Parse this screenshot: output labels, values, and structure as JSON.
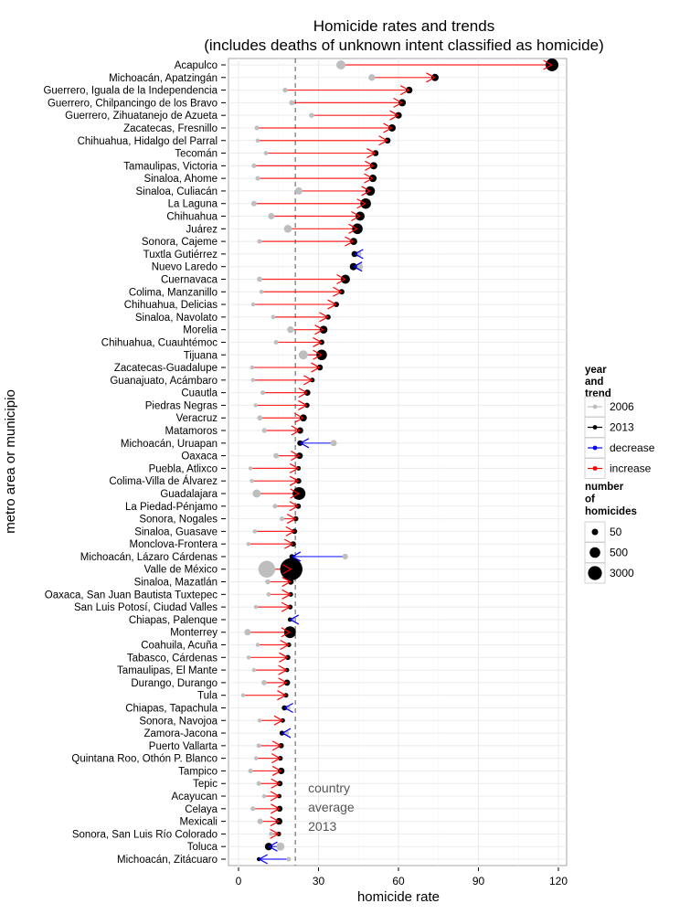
{
  "chart_data": {
    "type": "dot-arrow",
    "title": "Homicide rates and trends",
    "subtitle": "(includes deaths of unknown intent classified as homicide)",
    "xlabel": "homicide rate",
    "ylabel": "metro area or municipio",
    "xlim": [
      -4,
      124
    ],
    "xticks": [
      0,
      30,
      60,
      90,
      120
    ],
    "xtick_labels": [
      "0",
      "30",
      "60",
      "90",
      "120"
    ],
    "grid": true,
    "reference_line": {
      "value": 21.3,
      "style": "dashed",
      "label_lines": [
        "country",
        "average",
        "2013"
      ]
    },
    "colors": {
      "2006": "#bebebe",
      "2013": "#000000",
      "decrease": "#0000ff",
      "increase": "#ff0000"
    },
    "legend_trend": {
      "title_lines": [
        "year",
        "and",
        "trend"
      ],
      "position": "right",
      "items": [
        {
          "label": "2006",
          "color": "#bebebe"
        },
        {
          "label": "2013",
          "color": "#000000"
        },
        {
          "label": "decrease",
          "color": "#0000ff"
        },
        {
          "label": "increase",
          "color": "#ff0000"
        }
      ]
    },
    "legend_size": {
      "title_lines": [
        "number",
        "of",
        "homicides"
      ],
      "position": "right",
      "items": [
        {
          "label": "50",
          "value": 50
        },
        {
          "label": "500",
          "value": 500
        },
        {
          "label": "3000",
          "value": 3000
        }
      ]
    },
    "rows": [
      {
        "name": "Acapulco",
        "rate_2006": 38.4,
        "rate_2013": 117.6,
        "n_2006": 400,
        "n_2013": 1000
      },
      {
        "name": "Michoacán, Apatzingán",
        "rate_2006": 50.0,
        "rate_2013": 73.7,
        "n_2006": 150,
        "n_2013": 200
      },
      {
        "name": "Guerrero, Iguala de la Independencia",
        "rate_2006": 17.5,
        "rate_2013": 64.0,
        "n_2006": 40,
        "n_2013": 150
      },
      {
        "name": "Guerrero, Chilpancingo de los Bravo",
        "rate_2006": 20.0,
        "rate_2013": 61.4,
        "n_2006": 60,
        "n_2013": 200
      },
      {
        "name": "Guerrero, Zihuatanejo de Azueta",
        "rate_2006": 27.4,
        "rate_2013": 60.0,
        "n_2006": 40,
        "n_2013": 140
      },
      {
        "name": "Zacatecas, Fresnillo",
        "rate_2006": 6.9,
        "rate_2013": 57.6,
        "n_2006": 30,
        "n_2013": 200
      },
      {
        "name": "Chihuahua, Hidalgo del Parral",
        "rate_2006": 7.2,
        "rate_2013": 55.9,
        "n_2006": 15,
        "n_2013": 100
      },
      {
        "name": "Tecomán",
        "rate_2006": 10.3,
        "rate_2013": 51.4,
        "n_2006": 20,
        "n_2013": 100
      },
      {
        "name": "Tamaulipas, Victoria",
        "rate_2006": 5.8,
        "rate_2013": 50.7,
        "n_2006": 30,
        "n_2013": 200
      },
      {
        "name": "Sinaloa, Ahome",
        "rate_2006": 7.2,
        "rate_2013": 50.4,
        "n_2006": 30,
        "n_2013": 220
      },
      {
        "name": "Sinaloa, Culiacán",
        "rate_2006": 22.6,
        "rate_2013": 49.4,
        "n_2006": 200,
        "n_2013": 450
      },
      {
        "name": "La Laguna",
        "rate_2006": 5.8,
        "rate_2013": 47.7,
        "n_2006": 70,
        "n_2013": 600
      },
      {
        "name": "Chihuahua",
        "rate_2006": 12.3,
        "rate_2013": 45.6,
        "n_2006": 120,
        "n_2013": 400
      },
      {
        "name": "Juárez",
        "rate_2006": 18.5,
        "rate_2013": 44.6,
        "n_2006": 250,
        "n_2013": 600
      },
      {
        "name": "Sonora, Cajeme",
        "rate_2006": 7.9,
        "rate_2013": 43.2,
        "n_2006": 30,
        "n_2013": 180
      },
      {
        "name": "Tuxtla Gutiérrez",
        "rate_2006": 45.0,
        "rate_2013": 43.5,
        "n_2006": 100,
        "n_2013": 100
      },
      {
        "name": "Nuevo Laredo",
        "rate_2006": 45.3,
        "rate_2013": 43.1,
        "n_2006": 200,
        "n_2013": 200
      },
      {
        "name": "Cuernavaca",
        "rate_2006": 7.9,
        "rate_2013": 40.1,
        "n_2006": 60,
        "n_2013": 400
      },
      {
        "name": "Colima, Manzanillo",
        "rate_2006": 8.6,
        "rate_2013": 38.7,
        "n_2006": 15,
        "n_2013": 70
      },
      {
        "name": "Chihuahua, Delicias",
        "rate_2006": 5.5,
        "rate_2013": 36.7,
        "n_2006": 10,
        "n_2013": 60
      },
      {
        "name": "Sinaloa, Navolato",
        "rate_2006": 13.0,
        "rate_2013": 33.6,
        "n_2006": 20,
        "n_2013": 50
      },
      {
        "name": "Morelia",
        "rate_2006": 19.5,
        "rate_2013": 31.9,
        "n_2006": 150,
        "n_2013": 250
      },
      {
        "name": "Chihuahua, Cuauhtémoc",
        "rate_2006": 14.1,
        "rate_2013": 31.2,
        "n_2006": 25,
        "n_2013": 60
      },
      {
        "name": "Tijuana",
        "rate_2006": 24.3,
        "rate_2013": 31.2,
        "n_2006": 400,
        "n_2013": 600
      },
      {
        "name": "Zacatecas-Guadalupe",
        "rate_2006": 5.1,
        "rate_2013": 30.5,
        "n_2006": 15,
        "n_2013": 100
      },
      {
        "name": "Guanajuato, Acámbaro",
        "rate_2006": 5.4,
        "rate_2013": 27.7,
        "n_2006": 8,
        "n_2013": 30
      },
      {
        "name": "Cuautla",
        "rate_2006": 9.1,
        "rate_2013": 25.8,
        "n_2006": 30,
        "n_2013": 110
      },
      {
        "name": "Piedras Negras",
        "rate_2006": 6.4,
        "rate_2013": 25.7,
        "n_2006": 10,
        "n_2013": 50
      },
      {
        "name": "Veracruz",
        "rate_2006": 8.0,
        "rate_2013": 24.3,
        "n_2006": 50,
        "n_2013": 180
      },
      {
        "name": "Matamoros",
        "rate_2006": 9.7,
        "rate_2013": 23.1,
        "n_2006": 40,
        "n_2013": 120
      },
      {
        "name": "Michoacán, Uruapan",
        "rate_2006": 35.7,
        "rate_2013": 23.1,
        "n_2006": 110,
        "n_2013": 80
      },
      {
        "name": "Oaxaca",
        "rate_2006": 14.1,
        "rate_2013": 22.9,
        "n_2006": 70,
        "n_2013": 130
      },
      {
        "name": "Puebla, Atlixco",
        "rate_2006": 4.5,
        "rate_2013": 22.5,
        "n_2006": 6,
        "n_2013": 30
      },
      {
        "name": "Colima-Villa de Álvarez",
        "rate_2006": 5.0,
        "rate_2013": 22.5,
        "n_2006": 10,
        "n_2013": 75
      },
      {
        "name": "Guadalajara",
        "rate_2006": 6.8,
        "rate_2013": 22.7,
        "n_2006": 280,
        "n_2013": 1000
      },
      {
        "name": "La Piedad-Pénjamo",
        "rate_2006": 13.7,
        "rate_2013": 22.4,
        "n_2006": 30,
        "n_2013": 60
      },
      {
        "name": "Sonora, Nogales",
        "rate_2006": 16.3,
        "rate_2013": 21.5,
        "n_2006": 35,
        "n_2013": 50
      },
      {
        "name": "Sinaloa, Guasave",
        "rate_2006": 6.1,
        "rate_2013": 21.0,
        "n_2006": 15,
        "n_2013": 60
      },
      {
        "name": "Monclova-Frontera",
        "rate_2006": 3.7,
        "rate_2013": 20.5,
        "n_2006": 10,
        "n_2013": 65
      },
      {
        "name": "Michoacán, Lázaro Cárdenas",
        "rate_2006": 40.0,
        "rate_2013": 20.0,
        "n_2006": 80,
        "n_2013": 40
      },
      {
        "name": "Valle de México",
        "rate_2006": 10.6,
        "rate_2013": 19.8,
        "n_2006": 2000,
        "n_2013": 3900
      },
      {
        "name": "Sinaloa, Mazatlán",
        "rate_2006": 11.0,
        "rate_2013": 19.6,
        "n_2006": 50,
        "n_2013": 90
      },
      {
        "name": "Oaxaca, San Juan Bautista Tuxtepec",
        "rate_2006": 11.3,
        "rate_2013": 19.6,
        "n_2006": 20,
        "n_2013": 30
      },
      {
        "name": "San Luis Potosí, Ciudad Valles",
        "rate_2006": 6.5,
        "rate_2013": 19.4,
        "n_2006": 10,
        "n_2013": 35
      },
      {
        "name": "Chiapas, Palenque",
        "rate_2006": 20.5,
        "rate_2013": 19.3,
        "n_2006": 20,
        "n_2013": 20
      },
      {
        "name": "Monterrey",
        "rate_2006": 3.4,
        "rate_2013": 19.3,
        "n_2006": 130,
        "n_2013": 800
      },
      {
        "name": "Coahuila, Acuña",
        "rate_2006": 7.2,
        "rate_2013": 18.9,
        "n_2006": 10,
        "n_2013": 30
      },
      {
        "name": "Tabasco, Cárdenas",
        "rate_2006": 3.8,
        "rate_2013": 18.5,
        "n_2006": 10,
        "n_2013": 50
      },
      {
        "name": "Tamaulipas, El Mante",
        "rate_2006": 5.8,
        "rate_2013": 18.2,
        "n_2006": 6,
        "n_2013": 20
      },
      {
        "name": "Durango, Durango",
        "rate_2006": 9.6,
        "rate_2013": 18.2,
        "n_2006": 55,
        "n_2013": 110
      },
      {
        "name": "Tula",
        "rate_2006": 1.7,
        "rate_2013": 17.8,
        "n_2006": 3,
        "n_2013": 35
      },
      {
        "name": "Chiapas, Tapachula",
        "rate_2006": 18.5,
        "rate_2013": 17.2,
        "n_2006": 55,
        "n_2013": 55
      },
      {
        "name": "Sonora, Navojoa",
        "rate_2006": 7.9,
        "rate_2013": 16.6,
        "n_2006": 12,
        "n_2013": 25
      },
      {
        "name": "Zamora-Jacona",
        "rate_2006": 18.0,
        "rate_2013": 16.3,
        "n_2006": 45,
        "n_2013": 40
      },
      {
        "name": "Puerto Vallarta",
        "rate_2006": 7.6,
        "rate_2013": 16.0,
        "n_2006": 25,
        "n_2013": 60
      },
      {
        "name": "Quintana Roo, Othón P. Blanco",
        "rate_2006": 6.6,
        "rate_2013": 15.7,
        "n_2006": 15,
        "n_2013": 35
      },
      {
        "name": "Tampico",
        "rate_2006": 4.5,
        "rate_2013": 16.0,
        "n_2006": 35,
        "n_2013": 140
      },
      {
        "name": "Tepic",
        "rate_2006": 7.6,
        "rate_2013": 15.5,
        "n_2006": 30,
        "n_2013": 70
      },
      {
        "name": "Acayucan",
        "rate_2006": 9.6,
        "rate_2013": 15.3,
        "n_2006": 12,
        "n_2013": 20
      },
      {
        "name": "Celaya",
        "rate_2006": 5.4,
        "rate_2013": 15.4,
        "n_2006": 30,
        "n_2013": 90
      },
      {
        "name": "Mexicali",
        "rate_2006": 8.1,
        "rate_2013": 15.2,
        "n_2006": 75,
        "n_2013": 150
      },
      {
        "name": "Sonora, San Luis Río Colorado",
        "rate_2006": 12.2,
        "rate_2013": 15.1,
        "n_2006": 20,
        "n_2013": 30
      },
      {
        "name": "Toluca",
        "rate_2006": 15.7,
        "rate_2013": 11.3,
        "n_2006": 280,
        "n_2013": 220
      },
      {
        "name": "Michoacán, Zitácuaro",
        "rate_2006": 18.8,
        "rate_2013": 7.6,
        "n_2006": 30,
        "n_2013": 12
      }
    ]
  }
}
